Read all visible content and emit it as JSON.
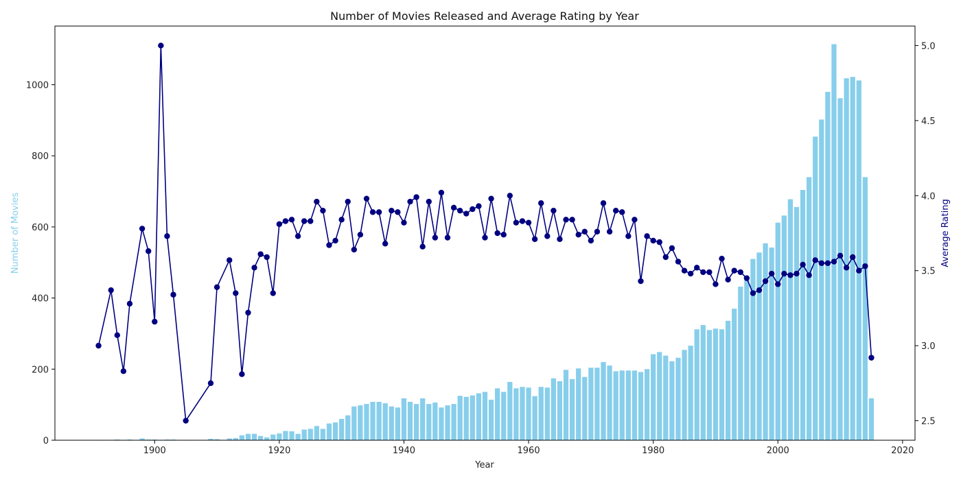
{
  "chart_data": {
    "type": "bar+line",
    "title": "Number of Movies Released and Average Rating by Year",
    "xlabel": "Year",
    "ylabel_left": "Number of Movies",
    "ylabel_right": "Average Rating",
    "xlim": [
      1884,
      2022
    ],
    "ylim_left": [
      0,
      1165
    ],
    "ylim_right": [
      2.37,
      5.13
    ],
    "x_ticks": [
      1900,
      1920,
      1940,
      1960,
      1980,
      2000,
      2020
    ],
    "y_left_ticks": [
      0,
      200,
      400,
      600,
      800,
      1000
    ],
    "y_right_ticks": [
      2.5,
      3.0,
      3.5,
      4.0,
      4.5,
      5.0
    ],
    "y_right_tick_labels": [
      "2.5",
      "3.0",
      "3.5",
      "4.0",
      "4.5",
      "5.0"
    ],
    "grid": false,
    "colors": {
      "bars": "#87ceeb",
      "line": "#000080",
      "left_axis_label": "#87ceeb",
      "right_axis_label": "#000080"
    },
    "series": [
      {
        "kind": "bar",
        "x": [
          1891,
          1893,
          1894,
          1895,
          1896,
          1898,
          1899,
          1900,
          1901,
          1902,
          1903,
          1905,
          1909,
          1910,
          1912,
          1913,
          1914,
          1915,
          1916,
          1917,
          1918,
          1919,
          1920,
          1921,
          1922,
          1923,
          1924,
          1925,
          1926,
          1927,
          1928,
          1929,
          1930,
          1931,
          1932,
          1933,
          1934,
          1935,
          1936,
          1937,
          1938,
          1939,
          1940,
          1941,
          1942,
          1943,
          1944,
          1945,
          1946,
          1947,
          1948,
          1949,
          1950,
          1951,
          1952,
          1953,
          1954,
          1955,
          1956,
          1957,
          1958,
          1959,
          1960,
          1961,
          1962,
          1963,
          1964,
          1965,
          1966,
          1967,
          1968,
          1969,
          1970,
          1971,
          1972,
          1973,
          1974,
          1975,
          1976,
          1977,
          1978,
          1979,
          1980,
          1981,
          1982,
          1983,
          1984,
          1985,
          1986,
          1987,
          1988,
          1989,
          1990,
          1991,
          1992,
          1993,
          1994,
          1995,
          1996,
          1997,
          1998,
          1999,
          2000,
          2001,
          2002,
          2003,
          2004,
          2005,
          2006,
          2007,
          2008,
          2009,
          2010,
          2011,
          2012,
          2013,
          2014,
          2015
        ],
        "values": [
          1,
          1,
          2,
          1,
          2,
          5,
          2,
          2,
          1,
          2,
          2,
          1,
          4,
          3,
          5,
          6,
          14,
          18,
          18,
          12,
          8,
          16,
          19,
          26,
          25,
          18,
          30,
          32,
          40,
          32,
          47,
          50,
          60,
          70,
          95,
          98,
          102,
          108,
          108,
          104,
          95,
          92,
          118,
          108,
          102,
          118,
          102,
          106,
          92,
          98,
          102,
          125,
          122,
          126,
          132,
          136,
          114,
          146,
          136,
          164,
          146,
          150,
          148,
          124,
          150,
          148,
          174,
          166,
          198,
          172,
          202,
          178,
          204,
          204,
          220,
          210,
          194,
          196,
          196,
          196,
          192,
          200,
          242,
          248,
          238,
          222,
          232,
          254,
          266,
          312,
          324,
          310,
          314,
          312,
          336,
          370,
          432,
          450,
          510,
          528,
          554,
          542,
          612,
          632,
          678,
          656,
          704,
          740,
          854,
          902,
          980,
          1114,
          962,
          1018,
          1022,
          1012,
          740,
          118
        ]
      },
      {
        "kind": "line",
        "x": [
          1891,
          1893,
          1894,
          1895,
          1896,
          1898,
          1899,
          1900,
          1901,
          1902,
          1903,
          1905,
          1909,
          1910,
          1912,
          1913,
          1914,
          1915,
          1916,
          1917,
          1918,
          1919,
          1920,
          1921,
          1922,
          1923,
          1924,
          1925,
          1926,
          1927,
          1928,
          1929,
          1930,
          1931,
          1932,
          1933,
          1934,
          1935,
          1936,
          1937,
          1938,
          1939,
          1940,
          1941,
          1942,
          1943,
          1944,
          1945,
          1946,
          1947,
          1948,
          1949,
          1950,
          1951,
          1952,
          1953,
          1954,
          1955,
          1956,
          1957,
          1958,
          1959,
          1960,
          1961,
          1962,
          1963,
          1964,
          1965,
          1966,
          1967,
          1968,
          1969,
          1970,
          1971,
          1972,
          1973,
          1974,
          1975,
          1976,
          1977,
          1978,
          1979,
          1980,
          1981,
          1982,
          1983,
          1984,
          1985,
          1986,
          1987,
          1988,
          1989,
          1990,
          1991,
          1992,
          1993,
          1994,
          1995,
          1996,
          1997,
          1998,
          1999,
          2000,
          2001,
          2002,
          2003,
          2004,
          2005,
          2006,
          2007,
          2008,
          2009,
          2010,
          2011,
          2012,
          2013,
          2014,
          2015
        ],
        "values": [
          3.0,
          3.37,
          3.07,
          2.83,
          3.28,
          3.78,
          3.63,
          3.16,
          5.0,
          3.73,
          3.34,
          2.5,
          2.75,
          3.39,
          3.57,
          3.35,
          2.81,
          3.22,
          3.52,
          3.61,
          3.59,
          3.35,
          3.81,
          3.83,
          3.84,
          3.73,
          3.83,
          3.83,
          3.96,
          3.9,
          3.67,
          3.7,
          3.84,
          3.96,
          3.64,
          3.74,
          3.98,
          3.89,
          3.89,
          3.68,
          3.9,
          3.89,
          3.82,
          3.96,
          3.99,
          3.66,
          3.96,
          3.72,
          4.02,
          3.72,
          3.92,
          3.9,
          3.88,
          3.91,
          3.93,
          3.72,
          3.98,
          3.75,
          3.74,
          4.0,
          3.82,
          3.83,
          3.82,
          3.71,
          3.95,
          3.73,
          3.9,
          3.71,
          3.84,
          3.84,
          3.74,
          3.76,
          3.7,
          3.76,
          3.95,
          3.76,
          3.9,
          3.89,
          3.73,
          3.84,
          3.43,
          3.73,
          3.7,
          3.69,
          3.59,
          3.65,
          3.56,
          3.5,
          3.48,
          3.52,
          3.49,
          3.49,
          3.41,
          3.58,
          3.44,
          3.5,
          3.49,
          3.45,
          3.35,
          3.37,
          3.43,
          3.48,
          3.41,
          3.48,
          3.47,
          3.48,
          3.54,
          3.47,
          3.57,
          3.55,
          3.55,
          3.56,
          3.6,
          3.52,
          3.59,
          3.5,
          3.53,
          2.92
        ]
      }
    ]
  }
}
